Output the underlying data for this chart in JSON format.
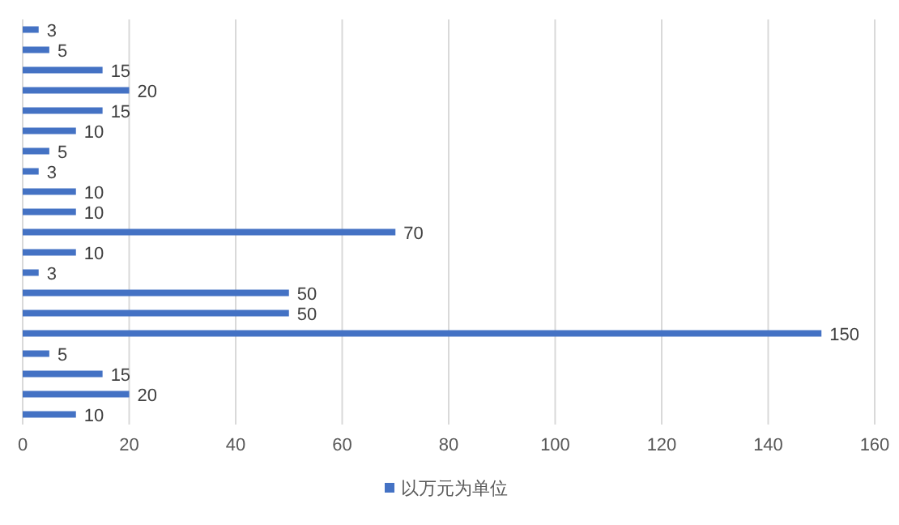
{
  "chart_data": {
    "type": "bar",
    "orientation": "horizontal",
    "categories": [
      null,
      null,
      null,
      null,
      null,
      null,
      null,
      null,
      null,
      null,
      null,
      null,
      null,
      null,
      null,
      null,
      null,
      null,
      null,
      null
    ],
    "series": [
      {
        "name": "以万元为单位",
        "color": "#4472c4",
        "values": [
          3,
          5,
          15,
          20,
          15,
          10,
          5,
          3,
          10,
          10,
          70,
          10,
          3,
          50,
          50,
          150,
          5,
          15,
          20,
          10
        ]
      }
    ],
    "xlim": [
      0,
      160
    ],
    "xticks": [
      0,
      20,
      40,
      60,
      80,
      100,
      120,
      140,
      160
    ],
    "grid": "x",
    "legend": "bottom",
    "data_labels": true
  }
}
